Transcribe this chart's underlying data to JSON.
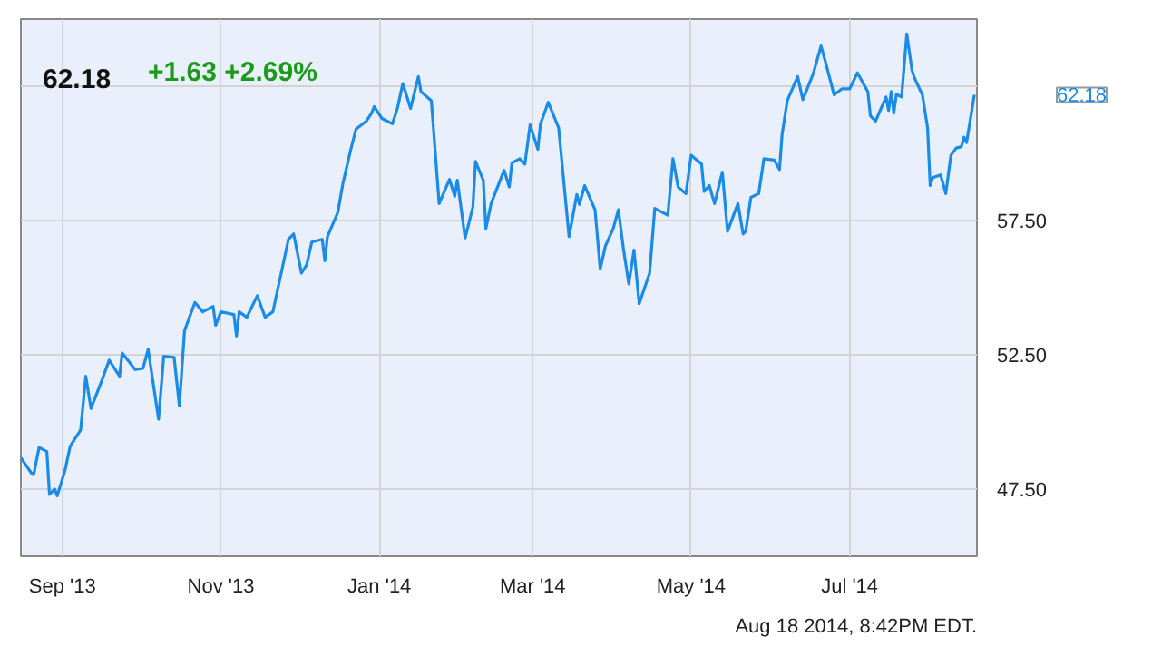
{
  "chart_data": {
    "type": "line",
    "title": "62.18",
    "subtitle": "+1.63  +2.69%",
    "annotations": [
      "Aug 18 2014, 8:42PM EDT.",
      "62.18"
    ],
    "x": [
      "2013-08-16",
      "2013-08-20",
      "2013-08-21",
      "2013-08-23",
      "2013-08-26",
      "2013-08-27",
      "2013-08-29",
      "2013-08-30",
      "2013-09-02",
      "2013-09-04",
      "2013-09-08",
      "2013-09-10",
      "2013-09-12",
      "2013-09-16",
      "2013-09-19",
      "2013-09-23",
      "2013-09-24",
      "2013-09-29",
      "2013-10-02",
      "2013-10-04",
      "2013-10-06",
      "2013-10-08",
      "2013-10-10",
      "2013-10-14",
      "2013-10-16",
      "2013-10-18",
      "2013-10-22",
      "2013-10-25",
      "2013-10-29",
      "2013-10-30",
      "2013-11-01",
      "2013-11-06",
      "2013-11-07",
      "2013-11-08",
      "2013-11-11",
      "2013-11-15",
      "2013-11-18",
      "2013-11-21",
      "2013-11-23",
      "2013-11-27",
      "2013-11-29",
      "2013-12-02",
      "2013-12-04",
      "2013-12-06",
      "2013-12-10",
      "2013-12-11",
      "2013-12-12",
      "2013-12-16",
      "2013-12-18",
      "2013-12-21",
      "2013-12-23",
      "2013-12-27",
      "2013-12-29",
      "2013-12-30",
      "2014-01-02",
      "2014-01-06",
      "2014-01-08",
      "2014-01-10",
      "2014-01-13",
      "2014-01-16",
      "2014-01-17",
      "2014-01-21",
      "2014-01-24",
      "2014-01-28",
      "2014-01-30",
      "2014-01-31",
      "2014-02-03",
      "2014-02-06",
      "2014-02-07",
      "2014-02-10",
      "2014-02-11",
      "2014-02-13",
      "2014-02-18",
      "2014-02-20",
      "2014-02-21",
      "2014-02-24",
      "2014-02-26",
      "2014-02-28",
      "2014-03-03",
      "2014-03-04",
      "2014-03-07",
      "2014-03-11",
      "2014-03-15",
      "2014-03-18",
      "2014-03-19",
      "2014-03-21",
      "2014-03-25",
      "2014-03-27",
      "2014-03-29",
      "2014-04-01",
      "2014-04-03",
      "2014-04-05",
      "2014-04-07",
      "2014-04-09",
      "2014-04-11",
      "2014-04-15",
      "2014-04-17",
      "2014-04-22",
      "2014-04-24",
      "2014-04-26",
      "2014-04-29",
      "2014-05-01",
      "2014-05-05",
      "2014-05-06",
      "2014-05-08",
      "2014-05-10",
      "2014-05-13",
      "2014-05-15",
      "2014-05-19",
      "2014-05-21",
      "2014-05-22",
      "2014-05-24",
      "2014-05-27",
      "2014-05-29",
      "2014-06-02",
      "2014-06-04",
      "2014-06-05",
      "2014-06-07",
      "2014-06-11",
      "2014-06-13",
      "2014-06-17",
      "2014-06-20",
      "2014-06-22",
      "2014-06-25",
      "2014-06-28",
      "2014-07-01",
      "2014-07-04",
      "2014-07-08",
      "2014-07-09",
      "2014-07-11",
      "2014-07-15",
      "2014-07-16",
      "2014-07-17",
      "2014-07-18",
      "2014-07-19",
      "2014-07-21",
      "2014-07-23",
      "2014-07-25",
      "2014-07-26",
      "2014-07-29",
      "2014-07-31",
      "2014-08-01",
      "2014-08-02",
      "2014-08-05",
      "2014-08-07",
      "2014-08-09",
      "2014-08-11",
      "2014-08-13",
      "2014-08-14",
      "2014-08-15",
      "2014-08-18"
    ],
    "series": [
      {
        "color": "#1a8be6",
        "values": [
          48.67,
          48.1,
          48.07,
          49.05,
          48.9,
          47.3,
          47.5,
          47.25,
          48.2,
          49.1,
          49.7,
          51.7,
          50.5,
          51.5,
          52.3,
          51.7,
          52.57,
          51.95,
          52.0,
          52.7,
          51.4,
          50.1,
          52.45,
          52.4,
          50.6,
          53.4,
          54.45,
          54.1,
          54.3,
          53.6,
          54.1,
          54.0,
          53.2,
          54.1,
          53.9,
          54.7,
          53.9,
          54.1,
          55.0,
          56.8,
          57.0,
          55.54,
          55.85,
          56.7,
          56.8,
          56.0,
          56.9,
          57.8,
          58.9,
          60.15,
          60.9,
          61.2,
          61.5,
          61.74,
          61.3,
          61.1,
          61.7,
          62.6,
          61.67,
          62.86,
          62.3,
          61.96,
          58.13,
          59.03,
          58.4,
          59.0,
          56.85,
          58.0,
          59.7,
          59.0,
          57.2,
          58.13,
          59.37,
          58.75,
          59.64,
          59.8,
          59.6,
          61.06,
          60.15,
          61.1,
          61.9,
          60.95,
          56.9,
          58.47,
          58.1,
          58.8,
          57.9,
          55.7,
          56.55,
          57.2,
          57.9,
          56.4,
          55.14,
          56.4,
          54.4,
          55.54,
          57.95,
          57.7,
          59.8,
          58.74,
          58.5,
          59.93,
          59.6,
          58.58,
          58.8,
          58.13,
          59.3,
          57.1,
          58.13,
          57.0,
          57.1,
          58.36,
          58.5,
          59.8,
          59.75,
          59.4,
          60.7,
          61.96,
          62.86,
          62.0,
          62.97,
          64.0,
          63.3,
          62.18,
          62.4,
          62.4,
          63.0,
          62.3,
          61.4,
          61.2,
          62.1,
          61.6,
          62.3,
          61.5,
          62.2,
          62.1,
          64.45,
          63.1,
          62.8,
          62.18,
          60.95,
          58.8,
          59.1,
          59.2,
          58.5,
          59.93,
          60.2,
          60.25,
          60.6,
          60.4,
          62.18
        ]
      }
    ],
    "xlim": [
      "2013-08-16",
      "2014-08-19"
    ],
    "xticks": [
      {
        "value": "2013-09-01",
        "label": "Sep '13"
      },
      {
        "value": "2013-11-01",
        "label": "Nov '13"
      },
      {
        "value": "2014-01-01",
        "label": "Jan '14"
      },
      {
        "value": "2014-03-01",
        "label": "Mar '14"
      },
      {
        "value": "2014-05-01",
        "label": "May '14"
      },
      {
        "value": "2014-07-01",
        "label": "Jul '14"
      }
    ],
    "ylim": [
      45,
      65
    ],
    "yticks": [
      {
        "value": 47.5,
        "label": "47.50"
      },
      {
        "value": 52.5,
        "label": "52.50"
      },
      {
        "value": 57.5,
        "label": "57.50"
      },
      {
        "value": 62.5,
        "label": null
      }
    ],
    "grid": true,
    "marker": "none",
    "line_style": "solid"
  }
}
